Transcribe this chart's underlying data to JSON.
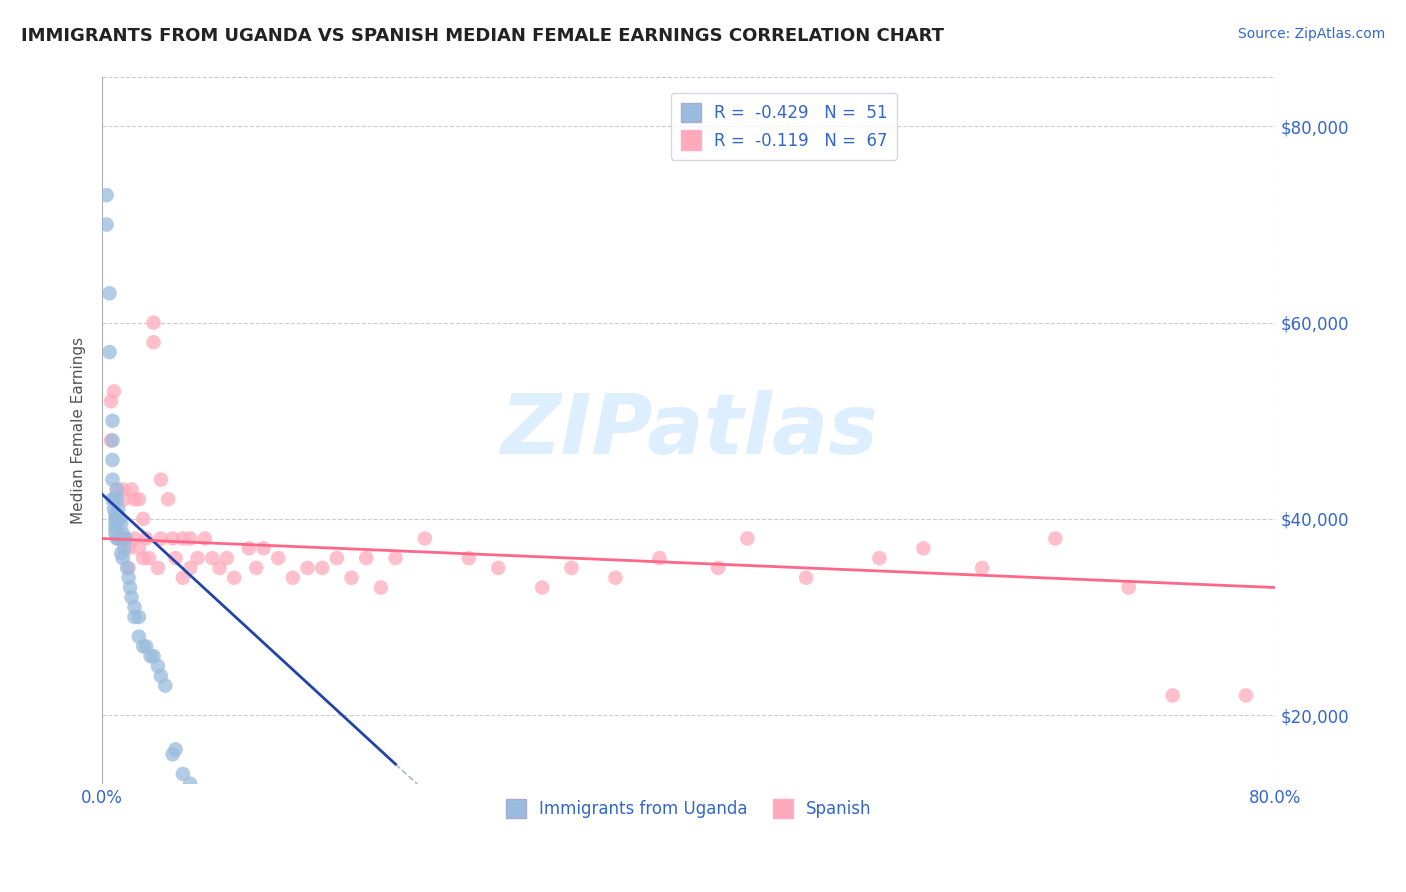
{
  "title": "IMMIGRANTS FROM UGANDA VS SPANISH MEDIAN FEMALE EARNINGS CORRELATION CHART",
  "source": "Source: ZipAtlas.com",
  "ylabel": "Median Female Earnings",
  "xmin": 0.0,
  "xmax": 0.8,
  "ymin": 13000,
  "ymax": 85000,
  "yticks": [
    20000,
    40000,
    60000,
    80000
  ],
  "ytick_labels": [
    "$20,000",
    "$40,000",
    "$60,000",
    "$80,000"
  ],
  "xticks": [
    0.0,
    0.8
  ],
  "xtick_labels": [
    "0.0%",
    "80.0%"
  ],
  "legend1_label": "R =  -0.429   N =  51",
  "legend2_label": "R =  -0.119   N =  67",
  "legend_bottom1": "Immigrants from Uganda",
  "legend_bottom2": "Spanish",
  "blue_color": "#99BBDD",
  "pink_color": "#FFAABB",
  "blue_line_color": "#2244AA",
  "pink_line_color": "#FF6688",
  "dash_line_color": "#AABBCC",
  "title_color": "#222222",
  "ylabel_color": "#555555",
  "tick_color": "#3366CC",
  "watermark_text": "ZIPatlas",
  "watermark_color": "#DDEEFF",
  "grid_color": "#CCCCDD",
  "blue_scatter_x": [
    0.003,
    0.003,
    0.005,
    0.005,
    0.007,
    0.007,
    0.007,
    0.007,
    0.007,
    0.008,
    0.008,
    0.009,
    0.009,
    0.009,
    0.009,
    0.009,
    0.01,
    0.01,
    0.01,
    0.01,
    0.011,
    0.011,
    0.011,
    0.012,
    0.012,
    0.013,
    0.013,
    0.013,
    0.014,
    0.014,
    0.015,
    0.016,
    0.017,
    0.018,
    0.019,
    0.02,
    0.022,
    0.022,
    0.025,
    0.025,
    0.028,
    0.03,
    0.033,
    0.035,
    0.038,
    0.04,
    0.043,
    0.048,
    0.05,
    0.055,
    0.06
  ],
  "blue_scatter_y": [
    73000,
    70000,
    63000,
    57000,
    50000,
    48000,
    46000,
    44000,
    42000,
    42000,
    41000,
    40500,
    40000,
    39500,
    39000,
    38500,
    43000,
    42000,
    40000,
    38000,
    41000,
    40000,
    38000,
    40000,
    38000,
    39500,
    38000,
    36500,
    38500,
    36000,
    37000,
    38000,
    35000,
    34000,
    33000,
    32000,
    31000,
    30000,
    30000,
    28000,
    27000,
    27000,
    26000,
    26000,
    25000,
    24000,
    23000,
    16000,
    16500,
    14000,
    13000
  ],
  "pink_scatter_x": [
    0.006,
    0.006,
    0.008,
    0.01,
    0.01,
    0.012,
    0.014,
    0.015,
    0.015,
    0.018,
    0.018,
    0.02,
    0.022,
    0.022,
    0.025,
    0.025,
    0.028,
    0.028,
    0.03,
    0.032,
    0.035,
    0.035,
    0.038,
    0.04,
    0.04,
    0.045,
    0.048,
    0.05,
    0.055,
    0.055,
    0.06,
    0.06,
    0.065,
    0.07,
    0.075,
    0.08,
    0.085,
    0.09,
    0.1,
    0.105,
    0.11,
    0.12,
    0.13,
    0.14,
    0.15,
    0.16,
    0.17,
    0.18,
    0.19,
    0.2,
    0.22,
    0.25,
    0.27,
    0.3,
    0.32,
    0.35,
    0.38,
    0.42,
    0.44,
    0.48,
    0.53,
    0.56,
    0.6,
    0.65,
    0.7,
    0.73,
    0.78
  ],
  "pink_scatter_y": [
    52000,
    48000,
    53000,
    43000,
    40000,
    38000,
    43000,
    42000,
    38000,
    37000,
    35000,
    43000,
    42000,
    38000,
    42000,
    37000,
    40000,
    36000,
    38000,
    36000,
    60000,
    58000,
    35000,
    44000,
    38000,
    42000,
    38000,
    36000,
    38000,
    34000,
    38000,
    35000,
    36000,
    38000,
    36000,
    35000,
    36000,
    34000,
    37000,
    35000,
    37000,
    36000,
    34000,
    35000,
    35000,
    36000,
    34000,
    36000,
    33000,
    36000,
    38000,
    36000,
    35000,
    33000,
    35000,
    34000,
    36000,
    35000,
    38000,
    34000,
    36000,
    37000,
    35000,
    38000,
    33000,
    22000,
    22000
  ]
}
